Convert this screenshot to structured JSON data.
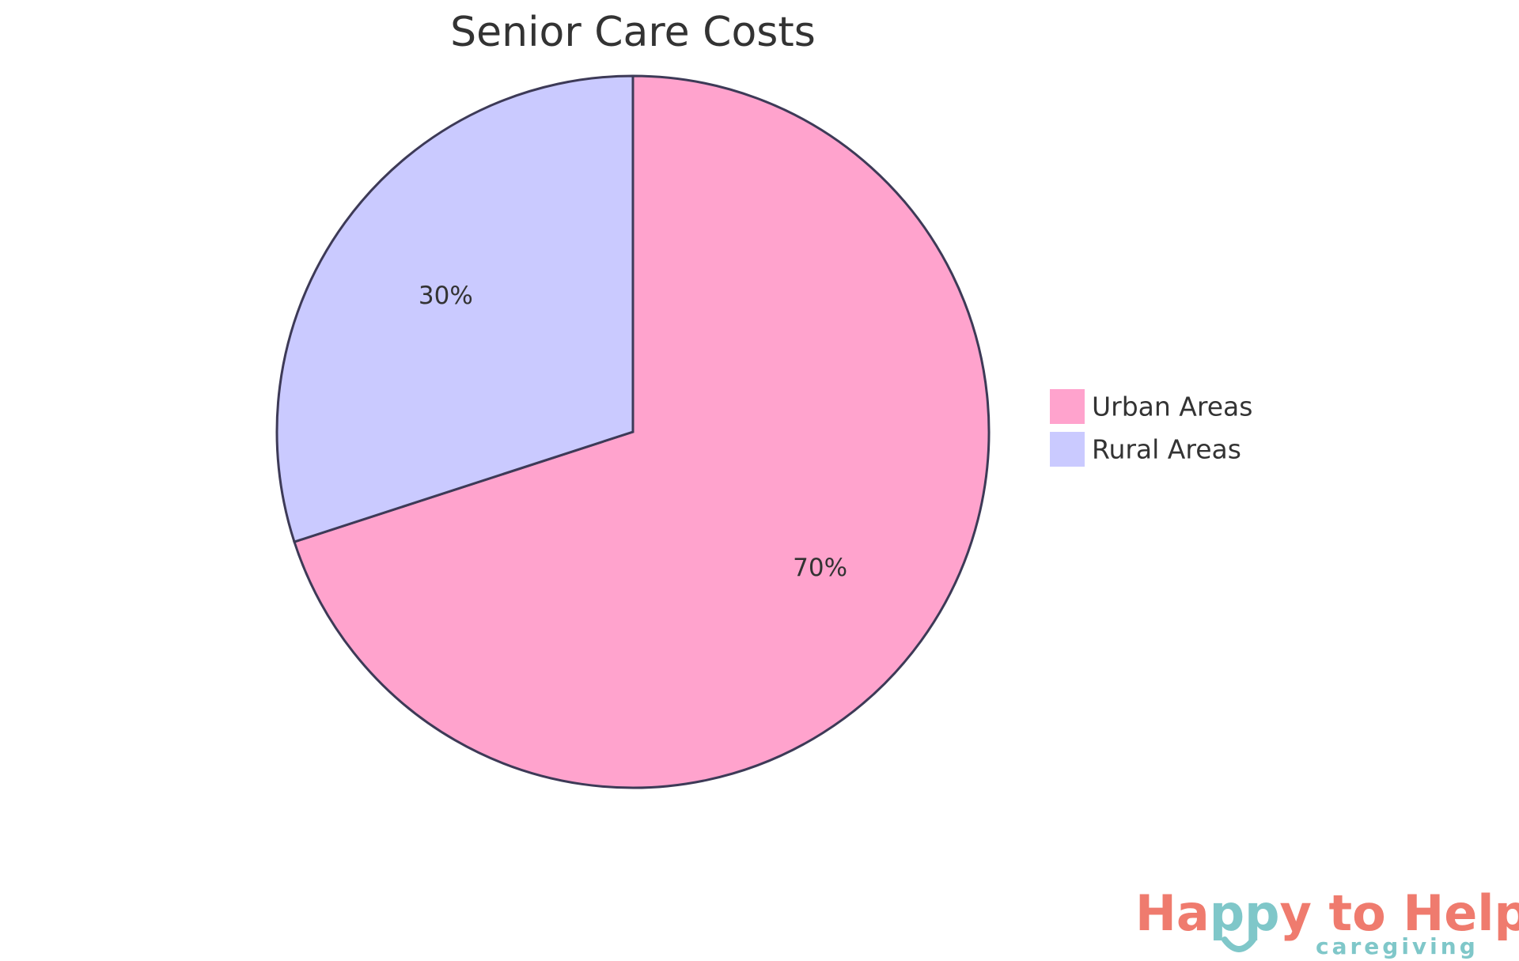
{
  "chart_data": {
    "type": "pie",
    "title": "Senior Care Costs",
    "slices": [
      {
        "label": "Urban Areas",
        "value": 70,
        "display": "70%",
        "color": "#FFA3CD"
      },
      {
        "label": "Rural Areas",
        "value": 30,
        "display": "30%",
        "color": "#CACAFF"
      }
    ],
    "start_angle_deg": 0,
    "direction": "clockwise",
    "stroke_color": "#3D3A57",
    "legend_position": "right"
  },
  "logo": {
    "text_part1": "Ha",
    "text_part2": "pp",
    "text_part3": "y to Help",
    "subtitle": "caregiving",
    "primary_color": "#EF7B6E",
    "accent_color": "#7FC7C9"
  }
}
